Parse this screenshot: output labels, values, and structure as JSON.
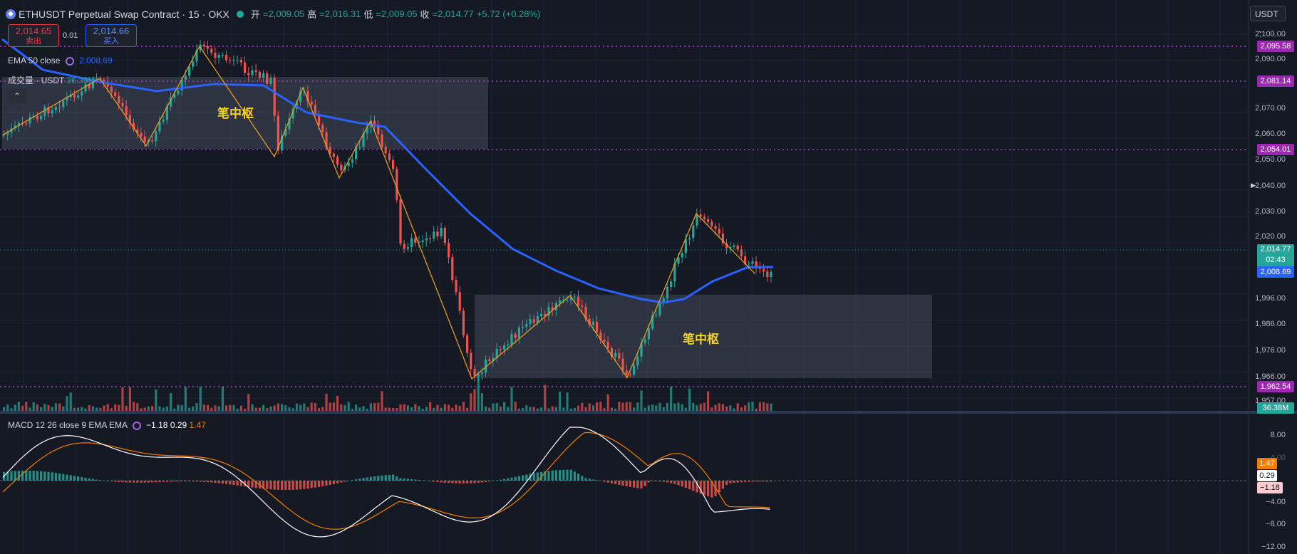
{
  "header": {
    "symbol": "ETHUSDT Perpetual Swap Contract",
    "interval": "15",
    "exchange": "OKX",
    "open_label": "开",
    "open": "=2,009.05",
    "high_label": "高",
    "high": "=2,016.31",
    "low_label": "低",
    "low": "=2,009.05",
    "close_label": "收",
    "close": "=2,014.77",
    "change": "+5.72 (+0.28%)"
  },
  "trade": {
    "sell_price": "2,014.65",
    "sell_label": "卖出",
    "spread": "0.01",
    "buy_price": "2,014.66",
    "buy_label": "买入"
  },
  "indicators": {
    "ema_label": "EMA 50 close",
    "ema_value": "2,008.69",
    "volume_label": "成交量 · USDT",
    "volume_value": "36.38M",
    "macd_label": "MACD 12 26 close 9 EMA EMA",
    "macd_hist": "−1.18",
    "macd_line": "0.29",
    "macd_signal": "1.47"
  },
  "annotations": {
    "zs1": "笔中枢",
    "zs2": "笔中枢"
  },
  "currency_button": "USDT",
  "price_axis": {
    "ticks": [
      "2,100.00",
      "2,090.00",
      "2,070.00",
      "2,060.00",
      "2,050.00",
      "2,040.00",
      "2,030.00",
      "2,020.00",
      "1,996.00",
      "1,986.00",
      "1,976.00",
      "1,966.00",
      "1,957.00"
    ],
    "badges": {
      "h1": "2,095.58",
      "h2": "2,081.14",
      "h3": "2,054.01",
      "last": "2,014.77",
      "countdown": "02:43",
      "ema": "2,008.69",
      "h4": "1,962.54",
      "vol": "36.38M"
    }
  },
  "macd_axis": {
    "ticks": [
      "8.00",
      "4.00",
      "−4.00",
      "−8.00",
      "−12.00"
    ],
    "badges": {
      "signal": "1.47",
      "macd": "0.29",
      "hist": "−1.18"
    }
  },
  "colors": {
    "up": "#26a69a",
    "down": "#ef5350",
    "ema": "#2962ff",
    "zigzag": "#f7a21b",
    "hline": "#9c27b0",
    "macd": "#ffffff",
    "signal": "#f57c00"
  }
}
